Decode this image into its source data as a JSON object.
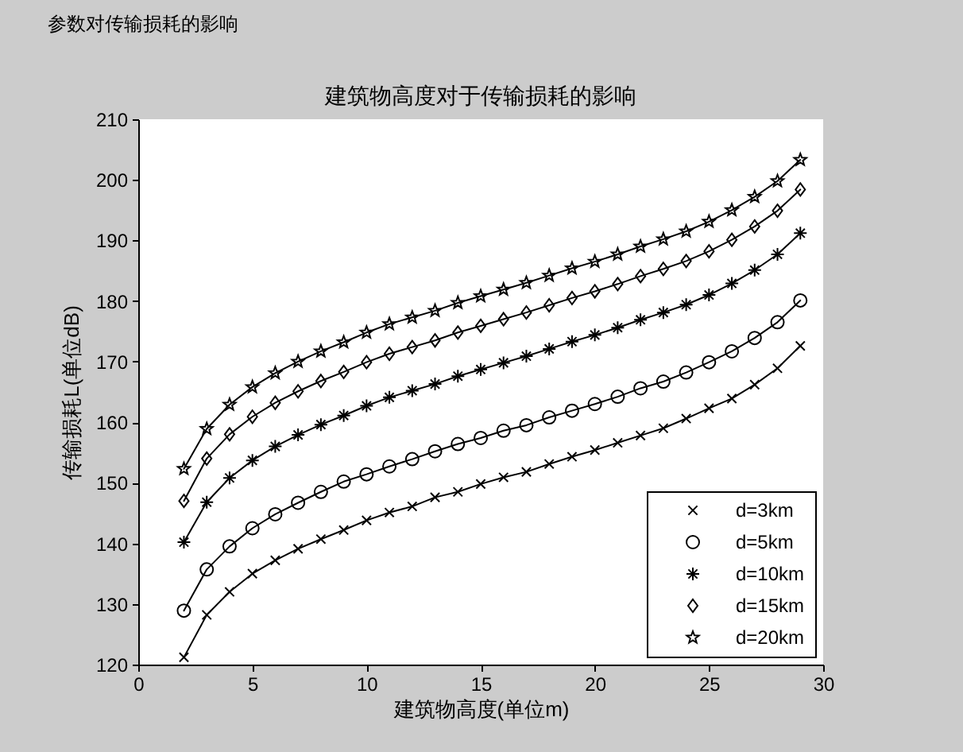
{
  "chart_data": {
    "type": "line",
    "title": "建筑物高度对于传输损耗的影响",
    "xlabel": "建筑物高度(单位m)",
    "ylabel": "传输损耗L(单位dB)",
    "annotations": [
      "参数对传输损耗的影响"
    ],
    "x": [
      2,
      3,
      4,
      5,
      6,
      7,
      8,
      9,
      10,
      11,
      12,
      13,
      14,
      15,
      16,
      17,
      18,
      19,
      20,
      21,
      22,
      23,
      24,
      25,
      26,
      27,
      28,
      29
    ],
    "xlim": [
      0,
      30
    ],
    "xticks": [
      0,
      5,
      10,
      15,
      20,
      25,
      30
    ],
    "ylim": [
      120,
      210
    ],
    "yticks": [
      120,
      130,
      140,
      150,
      160,
      170,
      180,
      190,
      200,
      210
    ],
    "grid": false,
    "legend": "bottom right",
    "line_style": "solid",
    "series": [
      {
        "name": "d=3km",
        "color": "#000000",
        "marker": "cross",
        "values": [
          121.2,
          128.2,
          132.0,
          135.0,
          137.2,
          139.1,
          140.7,
          142.2,
          143.8,
          145.1,
          146.1,
          147.6,
          148.5,
          149.8,
          150.9,
          151.8,
          153.1,
          154.3,
          155.4,
          156.6,
          157.8,
          159.0,
          160.6,
          162.3,
          163.9,
          166.2,
          168.9,
          172.6
        ]
      },
      {
        "name": "d=5km",
        "color": "#000000",
        "marker": "circle",
        "values": [
          128.9,
          135.7,
          139.5,
          142.5,
          144.8,
          146.7,
          148.5,
          150.2,
          151.4,
          152.7,
          153.9,
          155.2,
          156.4,
          157.4,
          158.6,
          159.5,
          160.8,
          161.9,
          163.0,
          164.2,
          165.6,
          166.7,
          168.2,
          169.9,
          171.7,
          173.9,
          176.5,
          180.1
        ]
      },
      {
        "name": "d=10km",
        "color": "#000000",
        "marker": "cross",
        "values": [
          140.2,
          146.8,
          150.8,
          153.7,
          156.0,
          157.9,
          159.6,
          161.1,
          162.7,
          164.1,
          165.2,
          166.3,
          167.6,
          168.7,
          169.8,
          170.9,
          172.1,
          173.3,
          174.4,
          175.6,
          176.9,
          178.1,
          179.4,
          181.0,
          182.9,
          185.1,
          187.7,
          191.2
        ]
      },
      {
        "name": "d=15km",
        "color": "#000000",
        "marker": "diamond",
        "values": [
          147.0,
          154.0,
          158.0,
          160.9,
          163.2,
          165.1,
          166.8,
          168.3,
          169.9,
          171.3,
          172.4,
          173.5,
          174.8,
          175.9,
          177.0,
          178.1,
          179.3,
          180.5,
          181.6,
          182.8,
          184.1,
          185.3,
          186.6,
          188.2,
          190.1,
          192.3,
          194.9,
          198.4
        ]
      },
      {
        "name": "d=20km",
        "color": "#000000",
        "marker": "star",
        "values": [
          152.3,
          158.9,
          162.9,
          165.8,
          168.1,
          170.0,
          171.7,
          173.2,
          174.8,
          176.2,
          177.3,
          178.4,
          179.7,
          180.8,
          181.9,
          183.0,
          184.2,
          185.4,
          186.5,
          187.7,
          189.0,
          190.2,
          191.5,
          193.1,
          195.0,
          197.2,
          199.8,
          203.3
        ]
      }
    ]
  }
}
